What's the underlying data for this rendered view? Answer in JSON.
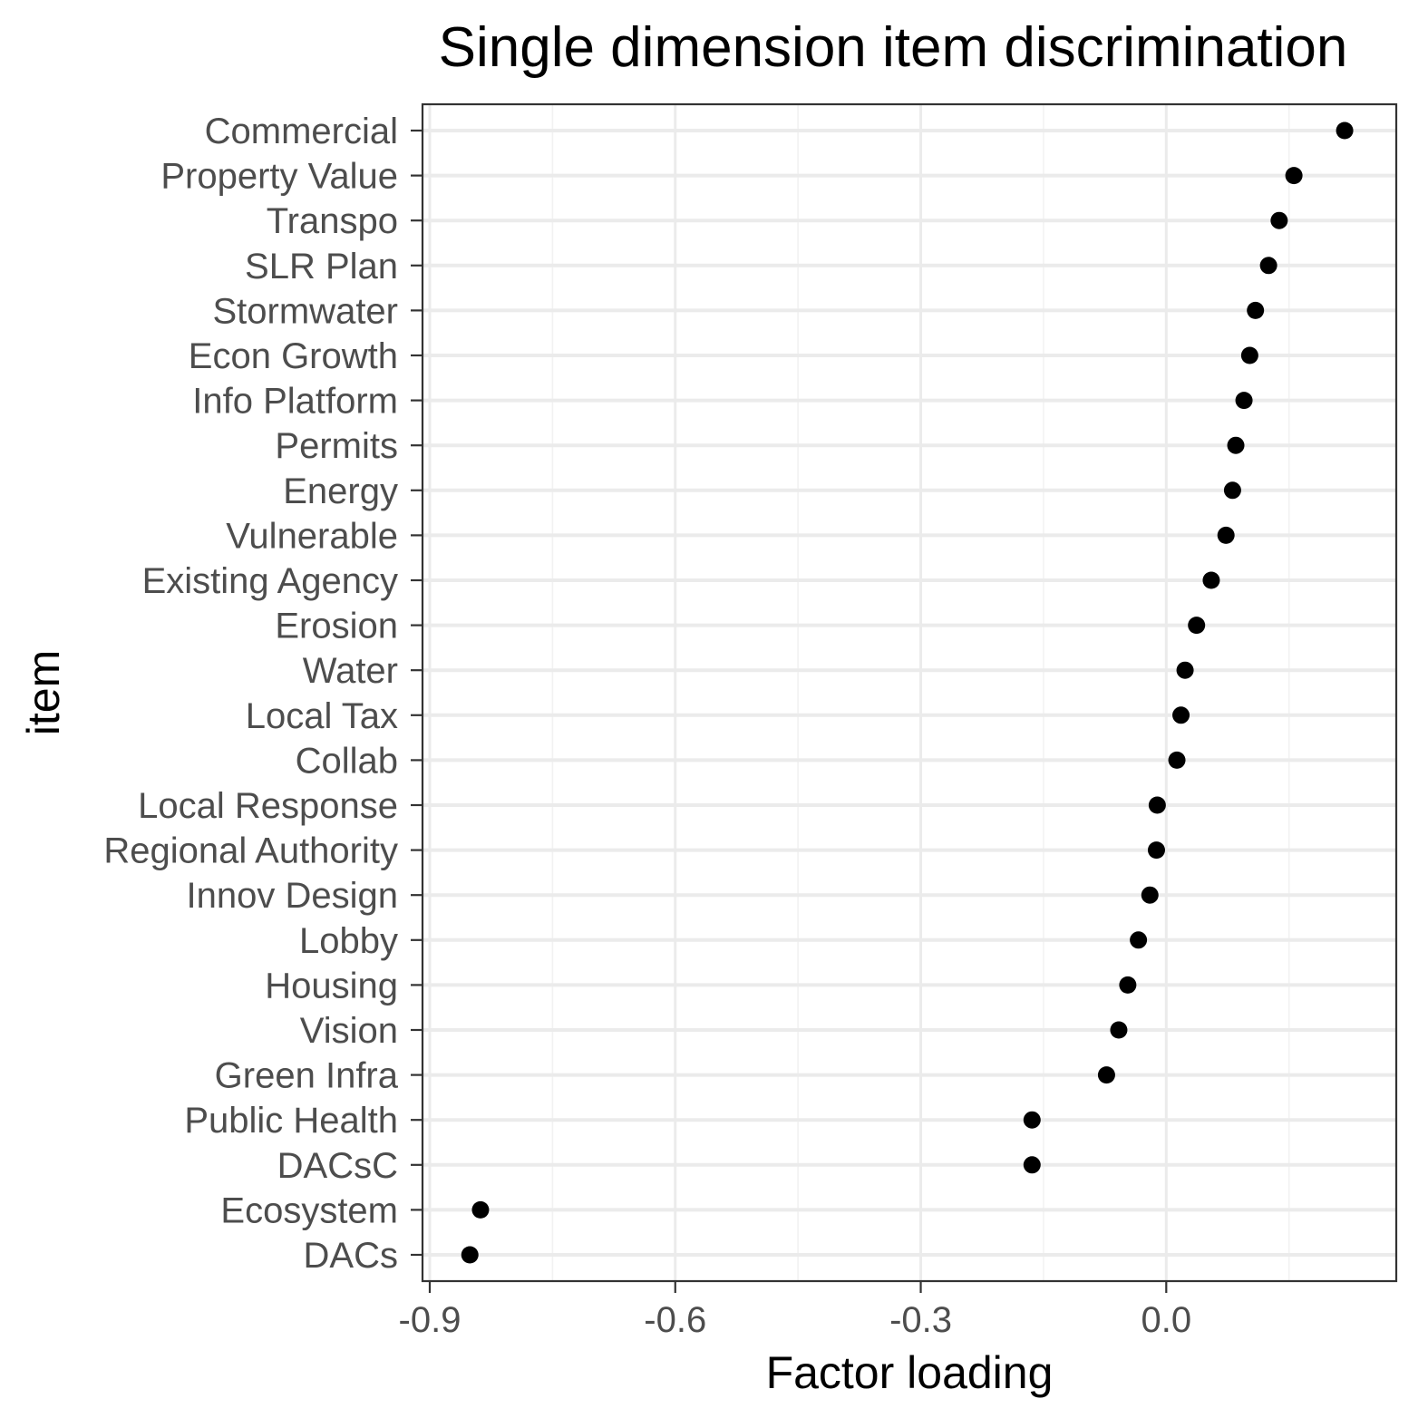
{
  "chart_data": {
    "type": "scatter",
    "title": "Single dimension item discrimination",
    "xlabel": "Factor loading",
    "ylabel": "item",
    "xlim": [
      -0.9,
      0.27
    ],
    "xticks": [
      -0.9,
      -0.6,
      -0.3,
      0.0
    ],
    "xtick_labels": [
      "-0.9",
      "-0.6",
      "-0.3",
      "0.0"
    ],
    "grid": true,
    "theme": "bw",
    "point_color": "#000000",
    "categories": [
      "Commercial",
      "Property Value",
      "Transpo",
      "SLR Plan",
      "Stormwater",
      "Econ Growth",
      "Info Platform",
      "Permits",
      "Energy",
      "Vulnerable",
      "Existing Agency",
      "Erosion",
      "Water",
      "Local Tax",
      "Collab",
      "Local Response",
      "Regional Authority",
      "Innov Design",
      "Lobby",
      "Housing",
      "Vision",
      "Green Infra",
      "Public Health",
      "DACsC",
      "Ecosystem",
      "DACs"
    ],
    "values": [
      0.218,
      0.156,
      0.138,
      0.125,
      0.109,
      0.102,
      0.095,
      0.085,
      0.081,
      0.073,
      0.055,
      0.037,
      0.023,
      0.018,
      0.013,
      -0.011,
      -0.012,
      -0.02,
      -0.034,
      -0.047,
      -0.058,
      -0.073,
      -0.164,
      -0.164,
      -0.838,
      -0.851
    ]
  }
}
